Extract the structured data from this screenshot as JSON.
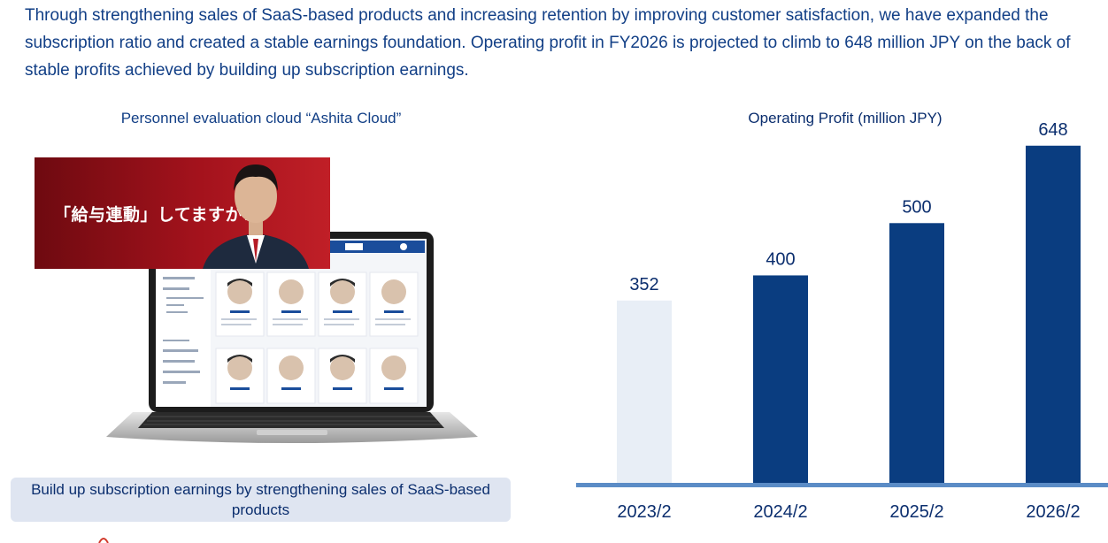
{
  "intro": "Through strengthening sales of SaaS-based products and increasing retention by improving customer satisfaction, we have expanded the subscription ratio and created a stable earnings foundation. Operating profit in FY2026 is projected to climb to 648 million JPY on the back of stable profits achieved by building up subscription earnings.",
  "left_panel": {
    "title": "Personnel evaluation cloud “Ashita Cloud”",
    "ad_text": "「給与連動」してますか?",
    "caption": "Build up subscription earnings by strengthening sales of SaaS-based products"
  },
  "chart_data": {
    "type": "bar",
    "title": "Operating Profit (million JPY)",
    "categories": [
      "2023/2",
      "2024/2",
      "2025/2",
      "2026/2"
    ],
    "values": [
      352,
      400,
      500,
      648
    ],
    "ylim": [
      0,
      700
    ],
    "grid": false,
    "colors": {
      "actual": "#e8eef6",
      "forecast": "#0a3d80",
      "axis": "#5b8cc6"
    }
  }
}
